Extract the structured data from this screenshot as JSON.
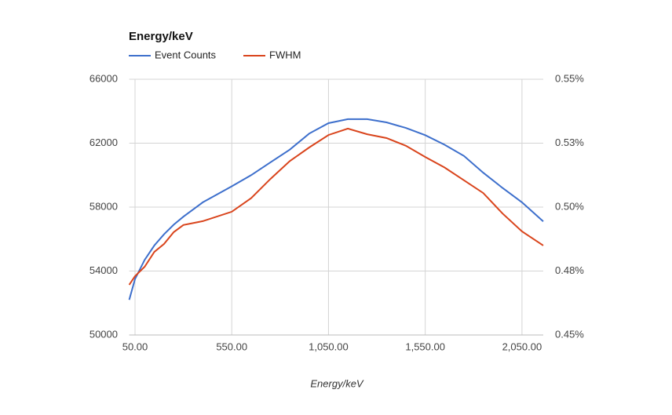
{
  "chart_data": {
    "type": "line",
    "title": "Energy/keV",
    "x_label": "Energy/keV",
    "x": [
      20,
      50,
      100,
      150,
      200,
      250,
      300,
      400,
      550,
      650,
      750,
      850,
      950,
      1050,
      1150,
      1250,
      1350,
      1450,
      1550,
      1650,
      1750,
      1850,
      1950,
      2050,
      2160
    ],
    "series": [
      {
        "name": "Event Counts",
        "color": "#3d6fcc",
        "values": [
          52200,
          53500,
          54700,
          55600,
          56300,
          56900,
          57400,
          58300,
          59300,
          60000,
          60800,
          61600,
          62600,
          63250,
          63500,
          63500,
          63300,
          62950,
          62500,
          61900,
          61200,
          60150,
          59200,
          58300,
          57100
        ]
      },
      {
        "name": "FWHM",
        "color": "#d9441c",
        "axis": "y2",
        "values": [
          0.4696,
          0.473,
          0.4767,
          0.4825,
          0.4856,
          0.4902,
          0.493,
          0.4945,
          0.4982,
          0.5035,
          0.511,
          0.518,
          0.5233,
          0.5282,
          0.5307,
          0.5285,
          0.527,
          0.524,
          0.5196,
          0.5155,
          0.5105,
          0.5055,
          0.4975,
          0.4905,
          0.485
        ]
      }
    ],
    "xlim": [
      20,
      2160
    ],
    "xticks": [
      {
        "value": 50,
        "label": "50.00"
      },
      {
        "value": 550,
        "label": "550.00"
      },
      {
        "value": 1050,
        "label": "1,050.00"
      },
      {
        "value": 1550,
        "label": "1,550.00"
      },
      {
        "value": 2050,
        "label": "2,050.00"
      }
    ],
    "ylim": [
      50000,
      66000
    ],
    "yticks": [
      50000,
      54000,
      58000,
      62000,
      66000
    ],
    "y2lim": [
      0.45,
      0.55
    ],
    "y2ticks": [
      {
        "value": 0.45,
        "label": "0.45%"
      },
      {
        "value": 0.475,
        "label": "0.48%"
      },
      {
        "value": 0.5,
        "label": "0.50%"
      },
      {
        "value": 0.525,
        "label": "0.53%"
      },
      {
        "value": 0.55,
        "label": "0.55%"
      }
    ],
    "grid": true
  }
}
